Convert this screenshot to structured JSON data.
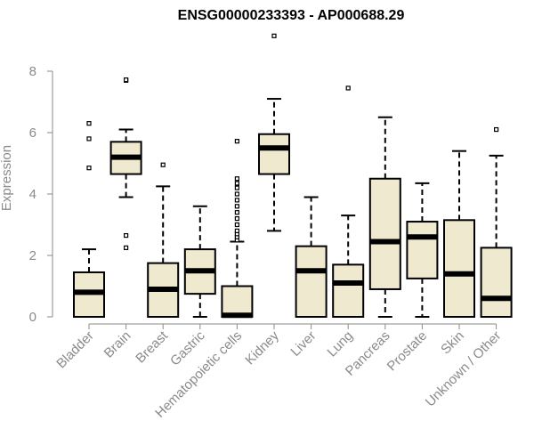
{
  "chart_data": {
    "type": "box",
    "title": "ENSG00000233393 - AP000688.29",
    "xlabel": "",
    "ylabel": "Expression",
    "ylim": [
      0,
      9.2
    ],
    "yticks": [
      0,
      2,
      4,
      6,
      8
    ],
    "grid": false,
    "legend": "none",
    "box_fill": "#efe9d0",
    "box_stroke": "#000000",
    "categories": [
      "Bladder",
      "Brain",
      "Breast",
      "Gastric",
      "Hematopoietic cells",
      "Kidney",
      "Liver",
      "Lung",
      "Pancreas",
      "Prostate",
      "Skin",
      "Unknown / Other"
    ],
    "boxes": [
      {
        "category": "Bladder",
        "min": 0,
        "q1": 0,
        "median": 0.8,
        "q3": 1.45,
        "max": 2.2,
        "outliers": [
          4.85,
          5.8,
          6.3
        ]
      },
      {
        "category": "Brain",
        "min": 3.9,
        "q1": 4.65,
        "median": 5.2,
        "q3": 5.7,
        "max": 6.1,
        "outliers": [
          2.25,
          2.65,
          7.7,
          7.72
        ]
      },
      {
        "category": "Breast",
        "min": 0,
        "q1": 0,
        "median": 0.9,
        "q3": 1.75,
        "max": 4.25,
        "outliers": [
          4.95
        ]
      },
      {
        "category": "Gastric",
        "min": 0,
        "q1": 0.75,
        "median": 1.5,
        "q3": 2.2,
        "max": 3.6,
        "outliers": []
      },
      {
        "category": "Hematopoietic cells",
        "min": 0,
        "q1": 0,
        "median": 0.05,
        "q3": 1.0,
        "max": 2.45,
        "outliers": [
          2.5,
          2.6,
          2.7,
          2.8,
          3.0,
          3.2,
          3.4,
          3.6,
          3.8,
          4.0,
          4.2,
          4.35,
          4.5,
          5.72
        ]
      },
      {
        "category": "Kidney",
        "min": 2.8,
        "q1": 4.65,
        "median": 5.5,
        "q3": 5.95,
        "max": 7.1,
        "outliers": [
          9.15
        ]
      },
      {
        "category": "Liver",
        "min": 0,
        "q1": 0,
        "median": 1.5,
        "q3": 2.3,
        "max": 3.9,
        "outliers": []
      },
      {
        "category": "Lung",
        "min": 0,
        "q1": 0,
        "median": 1.1,
        "q3": 1.7,
        "max": 3.3,
        "outliers": [
          7.45
        ]
      },
      {
        "category": "Pancreas",
        "min": 0,
        "q1": 0.9,
        "median": 2.45,
        "q3": 4.5,
        "max": 6.5,
        "outliers": []
      },
      {
        "category": "Prostate",
        "min": 0,
        "q1": 1.25,
        "median": 2.6,
        "q3": 3.1,
        "max": 4.35,
        "outliers": []
      },
      {
        "category": "Skin",
        "min": 0,
        "q1": 0,
        "median": 1.4,
        "q3": 3.15,
        "max": 5.4,
        "outliers": []
      },
      {
        "category": "Unknown / Other",
        "min": 0,
        "q1": 0,
        "median": 0.6,
        "q3": 2.25,
        "max": 5.25,
        "outliers": [
          6.1
        ]
      }
    ]
  }
}
